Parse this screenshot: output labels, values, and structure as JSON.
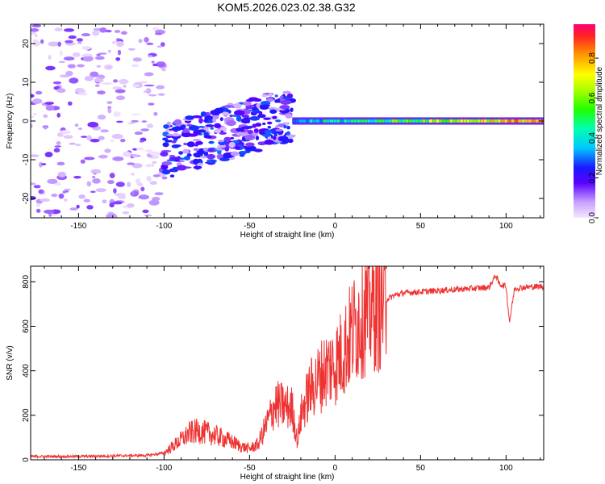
{
  "title": "KOM5.2026.023.02.38.G32",
  "chart_data": [
    {
      "type": "heatmap",
      "name": "spectrogram",
      "xlabel": "Height of straight line (km)",
      "ylabel": "Frequency (Hz)",
      "xlim": [
        -178,
        122
      ],
      "ylim": [
        -25,
        25
      ],
      "xticks": [
        -150,
        -100,
        -50,
        0,
        50,
        100
      ],
      "yticks": [
        -20,
        -10,
        0,
        10,
        20
      ],
      "colorbar": {
        "label": "Normalized spectral amplitude",
        "range": [
          0.0,
          0.97
        ],
        "ticks": [
          0.0,
          0.2,
          0.4,
          0.6,
          0.8
        ],
        "tick_labels": [
          "0.0",
          "0.2",
          "0.4",
          "0.6",
          "0.8"
        ]
      },
      "description_regions": [
        {
          "x_range": [
            -178,
            -100
          ],
          "freq_range": [
            -25,
            25
          ],
          "amplitude": [
            0.0,
            0.15
          ]
        },
        {
          "x_range": [
            -100,
            -25
          ],
          "freq_range": [
            -15,
            10
          ],
          "amplitude": [
            0.05,
            0.3
          ]
        },
        {
          "x_range": [
            -25,
            122
          ],
          "freq_range": [
            -2,
            2
          ],
          "amplitude": [
            0.2,
            0.97
          ]
        }
      ]
    },
    {
      "type": "line",
      "name": "snr",
      "xlabel": "Height of straight line (km)",
      "ylabel": "SNR (v/v)",
      "xlim": [
        -178,
        122
      ],
      "ylim": [
        0,
        870
      ],
      "xticks": [
        -150,
        -100,
        -50,
        0,
        50,
        100
      ],
      "yticks": [
        0,
        200,
        400,
        600,
        800
      ],
      "color": "#ee3333",
      "series": [
        {
          "name": "SNR",
          "x": [
            -178,
            -150,
            -110,
            -100,
            -95,
            -90,
            -85,
            -80,
            -75,
            -70,
            -65,
            -60,
            -55,
            -50,
            -45,
            -40,
            -35,
            -30,
            -25,
            -22,
            -20,
            -15,
            -10,
            -5,
            0,
            5,
            10,
            15,
            20,
            25,
            30,
            35,
            40,
            50,
            60,
            70,
            80,
            90,
            94,
            96,
            100,
            102,
            105,
            110,
            122
          ],
          "y": [
            15,
            15,
            20,
            30,
            60,
            90,
            120,
            130,
            120,
            110,
            95,
            80,
            60,
            50,
            70,
            160,
            250,
            240,
            230,
            80,
            200,
            310,
            360,
            410,
            430,
            490,
            570,
            650,
            680,
            700,
            720,
            740,
            750,
            755,
            760,
            765,
            770,
            775,
            830,
            790,
            780,
            620,
            770,
            775,
            780
          ]
        }
      ]
    }
  ]
}
